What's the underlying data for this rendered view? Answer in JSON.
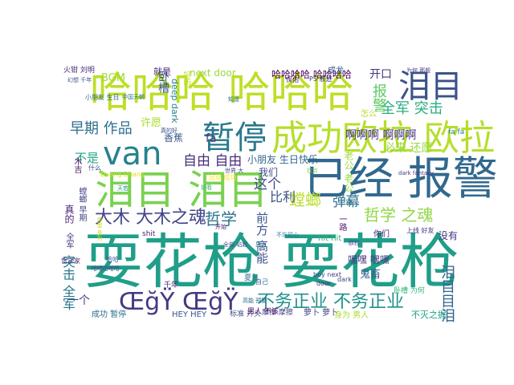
{
  "words": [
    {
      "t": "耍花枪 耍花枪",
      "c": "#1f9e89"
    },
    {
      "t": "哈哈哈 哈哈哈",
      "c": "#bddf26"
    },
    {
      "t": "已经 报警",
      "c": "#31688e"
    },
    {
      "t": "泪目 泪目",
      "c": "#7ad151"
    },
    {
      "t": "成功欧拉 欧拉",
      "c": "#b5de2b"
    },
    {
      "t": "暂停",
      "c": "#2a788e"
    },
    {
      "t": "van",
      "c": "#26828e"
    },
    {
      "t": "泪目",
      "c": "#3b528b"
    },
    {
      "t": "ŒğŸ ŒğŸ",
      "c": "#443983"
    },
    {
      "t": "大木 大木之魂",
      "c": "#414487"
    },
    {
      "t": "哲学",
      "c": "#2c728e"
    },
    {
      "t": "哲学 之魂",
      "c": "#90d743"
    },
    {
      "t": "不务正业 不务正业",
      "c": "#21918c"
    },
    {
      "t": "自由 自由",
      "c": "#472d7b"
    },
    {
      "t": "早期 作品",
      "c": "#2e6e8e"
    },
    {
      "t": "全军 突击",
      "c": "#28ae80"
    },
    {
      "t": "开口",
      "c": "#453781"
    },
    {
      "t": "报警",
      "c": "#5ec962"
    },
    {
      "t": "啊啊啊 啊啊啊",
      "c": "#46327e"
    },
    {
      "t": "螳螂",
      "c": "#b8de29"
    },
    {
      "t": "弹幕",
      "c": "#2d708e"
    },
    {
      "t": "这个",
      "c": "#3e4a89"
    },
    {
      "t": "比利",
      "c": "#3b528b"
    },
    {
      "t": "哈哈哈哈 哈哈哈哈",
      "c": "#440154"
    },
    {
      "t": "next door",
      "c": "#9bd93c"
    },
    {
      "t": "火钳 刘明",
      "c": "#472c7a"
    },
    {
      "t": "BGM",
      "c": "#a2da37"
    },
    {
      "t": "就是",
      "c": "#482475"
    },
    {
      "t": "卧槽",
      "c": "#39568c"
    },
    {
      "t": "好听",
      "c": "#c2df23"
    },
    {
      "t": "deep dark",
      "c": "#25858e"
    },
    {
      "t": "不是",
      "c": "#22a785"
    },
    {
      "t": "许愿",
      "c": "#addc30"
    },
    {
      "t": "香蕉",
      "c": "#38598c"
    },
    {
      "t": "fa",
      "c": "#453882"
    },
    {
      "t": "fa fa",
      "c": "#297a8e"
    },
    {
      "t": "小朋友 生日快乐",
      "c": "#31668e"
    },
    {
      "t": "我们",
      "c": "#3c4f8a"
    },
    {
      "t": "必来 还愿",
      "c": "#95d840"
    },
    {
      "t": "老公 老公",
      "c": "#9dd93b"
    },
    {
      "t": "一个",
      "c": "#414287"
    },
    {
      "t": "突击 全军",
      "c": "#2a768e"
    },
    {
      "t": "前方 高能",
      "c": "#3a548c"
    },
    {
      "t": "没有",
      "c": "#453581"
    },
    {
      "t": "泪目目泪",
      "c": "#32658e"
    },
    {
      "t": "成功 暂停",
      "c": "#2f6c8e"
    },
    {
      "t": "HEY HEY",
      "c": "#3a538b"
    },
    {
      "t": "标准 开头",
      "c": "#3d4d8a"
    },
    {
      "t": "摩擦 摩擦",
      "c": "#433e85"
    },
    {
      "t": "萝卜 萝卜",
      "c": "#3f4788"
    },
    {
      "t": "你们",
      "c": "#482173"
    },
    {
      "t": "嘿嘿 嘿嘿",
      "c": "#46337f"
    },
    {
      "t": "木吉",
      "c": "#471365"
    },
    {
      "t": "真的",
      "c": "#482677"
    },
    {
      "t": "螳螂 早期",
      "c": "#414487"
    },
    {
      "t": "全军",
      "c": "#433d84"
    },
    {
      "t": "shit",
      "c": "#482475"
    },
    {
      "t": "hit hit",
      "c": "#2db27d"
    },
    {
      "t": "男人 不该",
      "c": "#46085c"
    },
    {
      "t": "身为 男人",
      "c": "#addc30"
    },
    {
      "t": "不灭之握",
      "c": "#1fa088"
    },
    {
      "t": "一路",
      "c": "#460a5d"
    },
    {
      "t": "鬼畜",
      "c": "#34618d"
    },
    {
      "t": "上线 好友",
      "c": "#46307e"
    },
    {
      "t": "夏日",
      "c": "#2c718e"
    },
    {
      "t": "千年",
      "c": "#481d6f"
    },
    {
      "t": "卧槽 为何",
      "c": "#35b779"
    },
    {
      "t": "成龙",
      "c": "#39568c"
    },
    {
      "t": "PS 痕迹",
      "c": "#453882"
    },
    {
      "t": "保佑",
      "c": "#48186a"
    },
    {
      "t": "怎么",
      "c": "#b5de2b"
    },
    {
      "t": "Duang Duang",
      "c": "#d2e21b"
    },
    {
      "t": "什么",
      "c": "#404588"
    },
    {
      "t": "boy next",
      "c": "#414487"
    },
    {
      "t": "dark",
      "c": "#3f4889"
    },
    {
      "t": "door",
      "c": "#472c7a"
    },
    {
      "t": "一路",
      "c": "#2a788e"
    },
    {
      "t": "自己",
      "c": "#31688e"
    },
    {
      "t": "哈哈",
      "c": "#38598c"
    },
    {
      "t": "哲学家",
      "c": "#482878"
    },
    {
      "t": "幻想 千年",
      "c": "#3b528b"
    },
    {
      "t": "为何 那般",
      "c": "#443a83"
    },
    {
      "t": "出现 成功",
      "c": "#fde725"
    },
    {
      "t": "哈哈哈哈哈",
      "c": "#414487"
    },
    {
      "t": "小朋友 生日",
      "c": "#31688e"
    },
    {
      "t": "中国天朝",
      "c": "#297b8e"
    },
    {
      "t": "欧拉",
      "c": "#3f4788"
    },
    {
      "t": "男人",
      "c": "#2c728e"
    },
    {
      "t": "开始",
      "c": "#481769"
    },
    {
      "t": "世界 大",
      "c": "#404688"
    },
    {
      "t": "好看",
      "c": "#35b779"
    },
    {
      "t": "天若",
      "c": "#1f9a8a"
    },
    {
      "t": "真的好",
      "c": "#3c508b"
    },
    {
      "t": "知道",
      "c": "#2e6d8e"
    },
    {
      "t": "钦点",
      "c": "#7fd34e"
    },
    {
      "t": "赤蛋 身为",
      "c": "#c5e021"
    },
    {
      "t": "全部 站起",
      "c": "#3d4e8a"
    },
    {
      "t": "dark fantasy",
      "c": "#453781"
    },
    {
      "t": "不忘初心",
      "c": "#2a788e"
    },
    {
      "t": "高能 预警",
      "c": "#30698e"
    }
  ]
}
